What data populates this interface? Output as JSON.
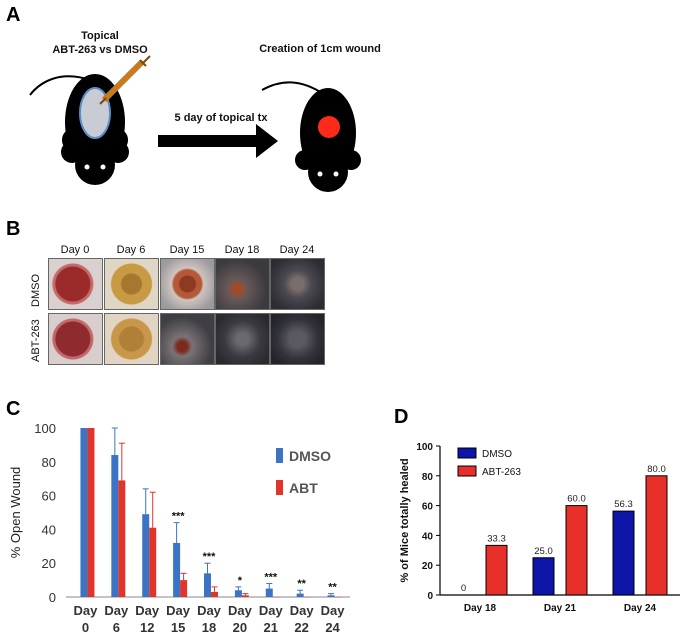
{
  "panels": {
    "a": "A",
    "b": "B",
    "c": "C",
    "d": "D"
  },
  "panel_a": {
    "left_title_line1": "Topical",
    "left_title_line2": "ABT-263 vs DMSO",
    "arrow_label": "5 day of topical tx",
    "right_title": "Creation of 1cm wound"
  },
  "panel_b": {
    "days": [
      "Day 0",
      "Day 6",
      "Day 15",
      "Day 18",
      "Day 24"
    ],
    "rows": [
      "DMSO",
      "ABT-263"
    ]
  },
  "chart_data": [
    {
      "type": "bar",
      "panel": "C",
      "ylabel": "% Open Wound",
      "ylim": [
        0,
        100
      ],
      "yticks": [
        0,
        20,
        40,
        60,
        80,
        100
      ],
      "categories_line1": [
        "Day",
        "Day",
        "Day",
        "Day",
        "Day",
        "Day",
        "Day",
        "Day",
        "Day"
      ],
      "categories_line2": [
        "0",
        "6",
        "12",
        "15",
        "18",
        "20",
        "21",
        "22",
        "24"
      ],
      "categories": [
        "Day 0",
        "Day 6",
        "Day 12",
        "Day 15",
        "Day 18",
        "Day 20",
        "Day 21",
        "Day 22",
        "Day 24"
      ],
      "series": [
        {
          "name": "DMSO",
          "color": "#3b74c4",
          "values": [
            100,
            84,
            49,
            32,
            14,
            4,
            5,
            2,
            1
          ],
          "errors": [
            0,
            16,
            15,
            12,
            6,
            2,
            3,
            2,
            1
          ]
        },
        {
          "name": "ABT",
          "color": "#e0352b",
          "values": [
            100,
            69,
            41,
            10,
            3,
            1,
            0,
            0,
            0
          ],
          "errors": [
            0,
            22,
            21,
            4,
            3,
            1,
            0,
            0,
            0
          ]
        }
      ],
      "significance": [
        "",
        "",
        "",
        "***",
        "***",
        "*",
        "***",
        "**",
        "**"
      ],
      "legend_position": "right"
    },
    {
      "type": "bar",
      "panel": "D",
      "ylabel": "% of Mice totally healed",
      "ylim": [
        0,
        100
      ],
      "yticks": [
        0,
        20,
        40,
        60,
        80,
        100
      ],
      "categories": [
        "Day 18",
        "Day 21",
        "Day 24"
      ],
      "series": [
        {
          "name": "DMSO",
          "color": "#0d14a8",
          "values": [
            0,
            25.0,
            56.3
          ],
          "labels": [
            "0",
            "25.0",
            "56.3"
          ]
        },
        {
          "name": "ABT-263",
          "color": "#e8302a",
          "values": [
            33.3,
            60.0,
            80.0
          ],
          "labels": [
            "33.3",
            "60.0",
            "80.0"
          ]
        }
      ],
      "legend_position": "top-left"
    }
  ]
}
